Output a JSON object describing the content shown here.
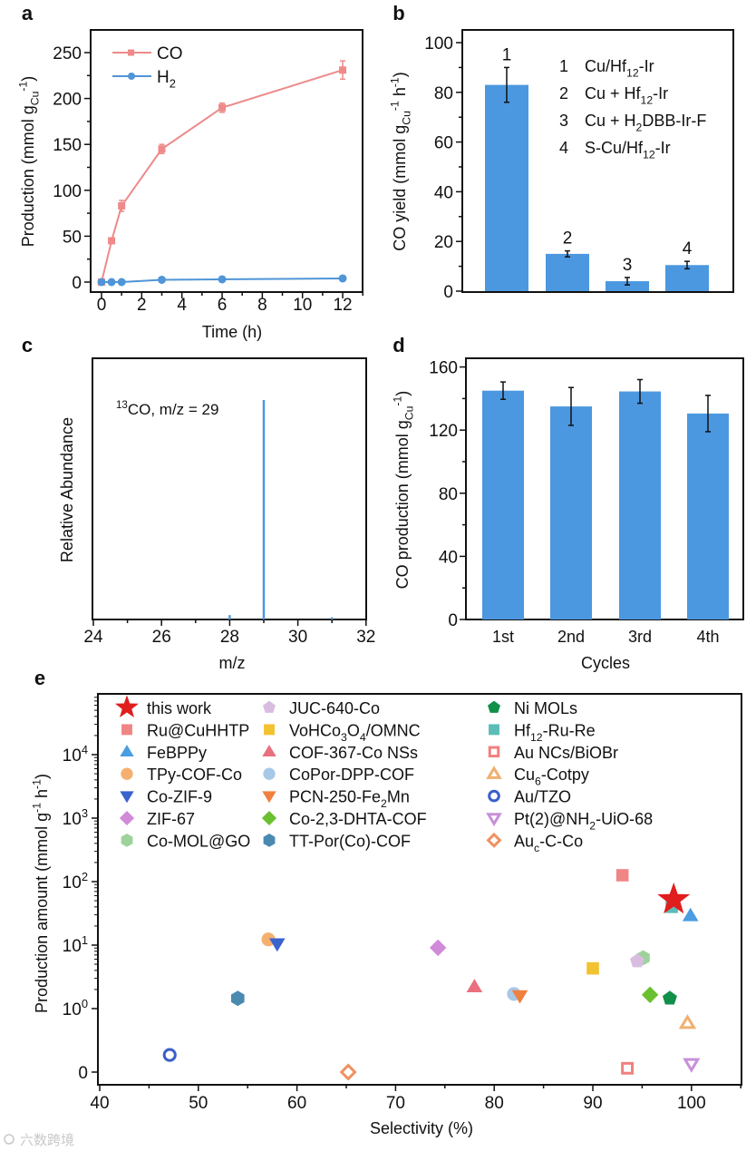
{
  "panels": {
    "a": "a",
    "b": "b",
    "c": "c",
    "d": "d",
    "e": "e"
  },
  "watermark": "六数跨境",
  "chart_data": [
    {
      "id": "a",
      "type": "line",
      "xlabel": "Time (h)",
      "ylabel": [
        {
          "t": "Production (mmol g"
        },
        {
          "t": "Cu",
          "sub": 1
        },
        {
          "t": "-1",
          "sup": 1
        },
        {
          "t": ")"
        }
      ],
      "xlim": [
        0,
        12
      ],
      "ylim": [
        0,
        270
      ],
      "xticks": [
        "0",
        "2",
        "4",
        "6",
        "8",
        "10",
        "12"
      ],
      "yticks": [
        "0",
        "50",
        "100",
        "150",
        "200",
        "250"
      ],
      "x": [
        0,
        0.5,
        1,
        3,
        6,
        12
      ],
      "series": [
        {
          "name": [
            {
              "t": "CO"
            }
          ],
          "color": "#ee8a8a",
          "marker": "square",
          "values": [
            0,
            45,
            83,
            145,
            190,
            231
          ],
          "errors": [
            0,
            2,
            6,
            5,
            5,
            10
          ]
        },
        {
          "name": [
            {
              "t": "H"
            },
            {
              "t": "2",
              "sub": 1
            }
          ],
          "color": "#4f95d8",
          "marker": "circle",
          "values": [
            0,
            0,
            0,
            2.5,
            3,
            4
          ],
          "errors": [
            0,
            0,
            0,
            0,
            0,
            0
          ]
        }
      ],
      "legend": "top-left"
    },
    {
      "id": "b",
      "type": "bar",
      "ylabel": [
        {
          "t": "CO yield (mmol g"
        },
        {
          "t": "Cu",
          "sub": 1
        },
        {
          "t": "-1",
          "sup": 1
        },
        {
          "t": " h"
        },
        {
          "t": "-1",
          "sup": 1
        },
        {
          "t": ")"
        }
      ],
      "ylim": [
        0,
        105
      ],
      "yticks": [
        "0",
        "20",
        "40",
        "60",
        "80",
        "100"
      ],
      "categories": [
        "1",
        "2",
        "3",
        "4"
      ],
      "values": [
        83,
        15,
        4,
        10.5
      ],
      "errors": [
        7,
        1.2,
        1.5,
        1.5
      ],
      "color": "#4c98e0",
      "legend_items": [
        {
          "num": "1",
          "label": [
            {
              "t": "Cu/Hf"
            },
            {
              "t": "12",
              "sub": 1
            },
            {
              "t": "-Ir"
            }
          ]
        },
        {
          "num": "2",
          "label": [
            {
              "t": "Cu + Hf"
            },
            {
              "t": "12",
              "sub": 1
            },
            {
              "t": "-Ir"
            }
          ]
        },
        {
          "num": "3",
          "label": [
            {
              "t": "Cu + H"
            },
            {
              "t": "2",
              "sub": 1
            },
            {
              "t": "DBB-Ir-F"
            }
          ]
        },
        {
          "num": "4",
          "label": [
            {
              "t": "S-Cu/Hf"
            },
            {
              "t": "12",
              "sub": 1
            },
            {
              "t": "-Ir"
            }
          ]
        }
      ],
      "legend": "top-right"
    },
    {
      "id": "c",
      "type": "bar",
      "xlabel": "m/z",
      "ylabel": "Relative Abundance",
      "xlim": [
        24,
        32
      ],
      "ylim": [
        0,
        119
      ],
      "xticks": [
        "24",
        "26",
        "28",
        "30",
        "32"
      ],
      "x": [
        28,
        29,
        31
      ],
      "values": [
        2,
        100,
        1
      ],
      "color": "#4c98e0",
      "annotation": [
        {
          "t": "13",
          "sup": 1
        },
        {
          "t": "CO, m/z = 29"
        }
      ]
    },
    {
      "id": "d",
      "type": "bar",
      "xlabel": "Cycles",
      "ylabel": [
        {
          "t": "CO production (mmol g"
        },
        {
          "t": "Cu",
          "sub": 1
        },
        {
          "t": "-1",
          "sup": 1
        },
        {
          "t": ")"
        }
      ],
      "ylim": [
        0,
        165
      ],
      "yticks": [
        "0",
        "40",
        "80",
        "120",
        "160"
      ],
      "categories": [
        "1st",
        "2nd",
        "3rd",
        "4th"
      ],
      "values": [
        145,
        135,
        144.5,
        130.5
      ],
      "errors": [
        5.5,
        12,
        7.5,
        11.5
      ],
      "color": "#4c98e0"
    },
    {
      "id": "e",
      "type": "scatter",
      "xlabel": "Selectivity (%)",
      "ylabel": [
        {
          "t": "Production amount (mmol g"
        },
        {
          "t": "-1",
          "sup": 1
        },
        {
          "t": " h"
        },
        {
          "t": "-1",
          "sup": 1
        },
        {
          "t": ")"
        }
      ],
      "xlim": [
        40,
        105
      ],
      "yscale": "log (with 0 baseline)",
      "xticks": [
        "40",
        "50",
        "60",
        "70",
        "80",
        "90",
        "100"
      ],
      "yticks": [
        [
          {
            "t": "0"
          }
        ],
        [
          {
            "t": "10"
          },
          {
            "t": "0",
            "sup": 1
          }
        ],
        [
          {
            "t": "10"
          },
          {
            "t": "1",
            "sup": 1
          }
        ],
        [
          {
            "t": "10"
          },
          {
            "t": "2",
            "sup": 1
          }
        ],
        [
          {
            "t": "10"
          },
          {
            "t": "3",
            "sup": 1
          }
        ],
        [
          {
            "t": "10"
          },
          {
            "t": "4",
            "sup": 1
          }
        ]
      ],
      "legend": "top (3 columns)",
      "points": [
        {
          "name": [
            {
              "t": "this work"
            }
          ],
          "shape": "star",
          "color": "#e01e1e",
          "hollow": false,
          "x": 98.2,
          "y": 52
        },
        {
          "name": [
            {
              "t": "Ru@CuHHTP"
            }
          ],
          "shape": "square",
          "color": "#f08585",
          "hollow": false,
          "x": 93,
          "y": 126
        },
        {
          "name": [
            {
              "t": "FeBPPy"
            }
          ],
          "shape": "triangle",
          "color": "#4a9de0",
          "hollow": false,
          "x": 99.9,
          "y": 29
        },
        {
          "name": [
            {
              "t": "TPy-COF-Co"
            }
          ],
          "shape": "circle",
          "color": "#f5b070",
          "hollow": false,
          "x": 57.1,
          "y": 12.3
        },
        {
          "name": [
            {
              "t": "Co-ZIF-9"
            }
          ],
          "shape": "tri-down",
          "color": "#3a63d0",
          "hollow": false,
          "x": 58,
          "y": 10.5
        },
        {
          "name": [
            {
              "t": "ZIF-67"
            }
          ],
          "shape": "diamond",
          "color": "#d08ad8",
          "hollow": false,
          "x": 74.3,
          "y": 9.1
        },
        {
          "name": [
            {
              "t": "Co-MOL@GO"
            }
          ],
          "shape": "hexagon",
          "color": "#9dd29a",
          "hollow": false,
          "x": 95.1,
          "y": 6.3
        },
        {
          "name": [
            {
              "t": "JUC-640-Co"
            }
          ],
          "shape": "pentagon",
          "color": "#d8bde0",
          "hollow": false,
          "x": 94.5,
          "y": 5.6
        },
        {
          "name": [
            {
              "t": "VoHCo"
            },
            {
              "t": "3",
              "sub": 1
            },
            {
              "t": "O"
            },
            {
              "t": "4",
              "sub": 1
            },
            {
              "t": "/OMNC"
            }
          ],
          "shape": "square",
          "color": "#f2c230",
          "hollow": false,
          "x": 90,
          "y": 4.3
        },
        {
          "name": [
            {
              "t": "COF-367-Co NSs"
            }
          ],
          "shape": "triangle",
          "color": "#e8707f",
          "hollow": false,
          "x": 78,
          "y": 2.2
        },
        {
          "name": [
            {
              "t": "CoPor-DPP-COF"
            }
          ],
          "shape": "circle",
          "color": "#a8c8e8",
          "hollow": false,
          "x": 82,
          "y": 1.7
        },
        {
          "name": [
            {
              "t": "PCN-250-Fe"
            },
            {
              "t": "2",
              "sub": 1
            },
            {
              "t": "Mn"
            }
          ],
          "shape": "tri-down",
          "color": "#f08040",
          "hollow": false,
          "x": 82.6,
          "y": 1.6
        },
        {
          "name": [
            {
              "t": "Co-2,3-DHTA-COF"
            }
          ],
          "shape": "diamond",
          "color": "#6ac030",
          "hollow": false,
          "x": 95.8,
          "y": 1.65
        },
        {
          "name": [
            {
              "t": "TT-Por(Co)-COF"
            }
          ],
          "shape": "hexagon",
          "color": "#4a8ab0",
          "hollow": false,
          "x": 54,
          "y": 1.45
        },
        {
          "name": [
            {
              "t": "Ni MOLs"
            }
          ],
          "shape": "pentagon",
          "color": "#10904a",
          "hollow": false,
          "x": 97.8,
          "y": 1.45
        },
        {
          "name": [
            {
              "t": "Hf"
            },
            {
              "t": "12",
              "sub": 1
            },
            {
              "t": "-Ru-Re"
            }
          ],
          "shape": "square",
          "color": "#5bbcb8",
          "hollow": false,
          "x": 98,
          "y": 40
        },
        {
          "name": [
            {
              "t": "Au NCs/BiOBr"
            }
          ],
          "shape": "square",
          "color": "#f08080",
          "hollow": true,
          "x": 93.5,
          "y": 0.06
        },
        {
          "name": [
            {
              "t": "Cu"
            },
            {
              "t": "6",
              "sub": 1
            },
            {
              "t": "-Cotpy"
            }
          ],
          "shape": "triangle",
          "color": "#f0b070",
          "hollow": true,
          "x": 99.6,
          "y": 0.77
        },
        {
          "name": [
            {
              "t": "Au/TZO"
            }
          ],
          "shape": "circle",
          "color": "#3a5fc8",
          "hollow": true,
          "x": 47.1,
          "y": 0.27
        },
        {
          "name": [
            {
              "t": "Pt(2)@NH"
            },
            {
              "t": "2",
              "sub": 1
            },
            {
              "t": "-UiO-68"
            }
          ],
          "shape": "tri-down",
          "color": "#c890d8",
          "hollow": true,
          "x": 100,
          "y": 0.13
        },
        {
          "name": [
            {
              "t": "Au"
            },
            {
              "t": "c",
              "sub": 1
            },
            {
              "t": "-C-Co"
            }
          ],
          "shape": "diamond",
          "color": "#f09060",
          "hollow": true,
          "x": 65.2,
          "y": 0
        }
      ]
    }
  ]
}
